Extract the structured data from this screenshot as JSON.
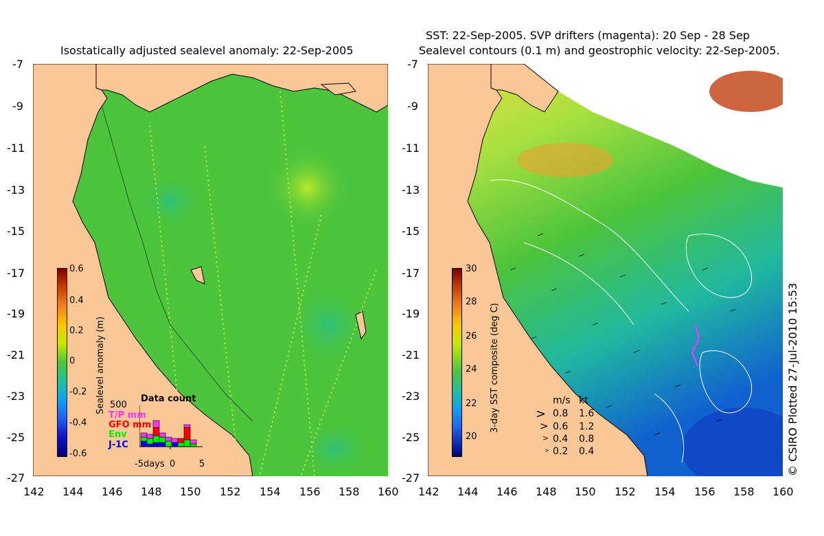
{
  "left_panel": {
    "title": "Isostatically adjusted sealevel anomaly: 22-Sep-2005",
    "y_ticks": [
      "-7",
      "-9",
      "-11",
      "-13",
      "-15",
      "-17",
      "-19",
      "-21",
      "-23",
      "-25",
      "-27"
    ],
    "x_ticks": [
      "142",
      "144",
      "146",
      "148",
      "150",
      "152",
      "154",
      "156",
      "158",
      "160"
    ],
    "colorbar": {
      "label": "Sealevel anomaly (m)",
      "ticks": [
        "0.6",
        "0.4",
        "0.2",
        "0",
        "-0.2",
        "-0.4",
        "-0.6"
      ],
      "range": [
        -0.6,
        0.6
      ]
    },
    "data_count": {
      "title": "Data count",
      "scale_label": "500",
      "x_labels": [
        "-5days",
        "0",
        "5"
      ],
      "legend": [
        {
          "label": "T/P mm",
          "color": "#ff33ff"
        },
        {
          "label": "GFO mm",
          "color": "#ff0000"
        },
        {
          "label": "Env",
          "color": "#00ee00"
        },
        {
          "label": "J-1C",
          "color": "#0000ff"
        }
      ]
    }
  },
  "right_panel": {
    "title_line1": "SST: 22-Sep-2005. SVP drifters (magenta): 20 Sep - 28 Sep",
    "title_line2": "Sealevel contours (0.1 m) and geostrophic velocity: 22-Sep-2005.",
    "y_ticks": [
      "-7",
      "-9",
      "-11",
      "-13",
      "-15",
      "-17",
      "-19",
      "-21",
      "-23",
      "-25",
      "-27"
    ],
    "x_ticks": [
      "142",
      "144",
      "146",
      "148",
      "150",
      "152",
      "154",
      "156",
      "158",
      "160"
    ],
    "colorbar": {
      "label": "3-day SST composite (deg C)",
      "ticks": [
        "30",
        "28",
        "26",
        "24",
        "22",
        "20"
      ],
      "range": [
        19,
        30
      ]
    },
    "speed_legend": {
      "header_ms": "m/s",
      "header_kt": "kt",
      "rows": [
        {
          "ms": "0.8",
          "kt": "1.6"
        },
        {
          "ms": "0.6",
          "kt": "1.2"
        },
        {
          "ms": "0.4",
          "kt": "0.8"
        },
        {
          "ms": "0.2",
          "kt": "0.4"
        }
      ]
    }
  },
  "copyright": "© CSIRO Plotted 27-Jul-2010 15:53",
  "colors": {
    "land": "#fac896",
    "ocean_left": "#4cc43c",
    "ocean_right": "#5cc83c"
  }
}
